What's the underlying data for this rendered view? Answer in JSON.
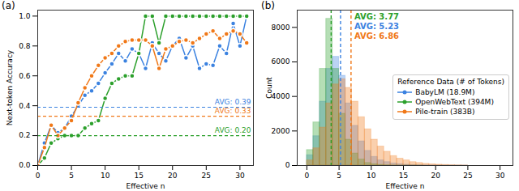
{
  "chart_data": [
    {
      "type": "line",
      "title": "(a)",
      "x_label": "Effective n",
      "y_label": "Next-token Accuracy",
      "x": [
        0,
        1,
        2,
        3,
        4,
        5,
        6,
        7,
        8,
        9,
        10,
        11,
        12,
        13,
        14,
        15,
        16,
        17,
        18,
        19,
        20,
        21,
        22,
        23,
        24,
        25,
        26,
        27,
        28,
        29,
        30,
        31
      ],
      "series": [
        {
          "name": "BabyLM (18.9M)",
          "color": "#3b82e0",
          "avg": 0.39,
          "avg_label": "AVG: 0.39",
          "values": [
            0,
            0.15,
            0.27,
            0.22,
            0.25,
            0.33,
            0.4,
            0.47,
            0.5,
            0.55,
            0.62,
            0.68,
            0.75,
            0.7,
            0.78,
            0.75,
            0.65,
            0.82,
            0.75,
            0.7,
            0.8,
            0.85,
            0.72,
            0.8,
            0.65,
            0.68,
            0.67,
            0.8,
            0.75,
            0.95,
            0.8,
            1.0
          ]
        },
        {
          "name": "OpenWebText (394M)",
          "color": "#2ca02c",
          "avg": 0.2,
          "avg_label": "AVG: 0.20",
          "values": [
            0,
            0.05,
            0.15,
            0.18,
            0.2,
            0.2,
            0.2,
            0.25,
            0.28,
            0.3,
            0.45,
            0.55,
            0.58,
            0.6,
            0.6,
            0.75,
            1.0,
            1.0,
            0.82,
            1.0,
            1.0,
            1.0,
            1.0,
            1.0,
            1.0,
            1.0,
            1.0,
            1.0,
            1.0,
            1.0,
            1.0,
            1.0
          ]
        },
        {
          "name": "Pile-train (383B)",
          "color": "#f07818",
          "avg": 0.33,
          "avg_label": "AVG: 0.33",
          "values": [
            0,
            0.12,
            0.27,
            0.2,
            0.25,
            0.3,
            0.42,
            0.52,
            0.6,
            0.67,
            0.72,
            0.75,
            0.8,
            0.83,
            0.84,
            0.84,
            0.84,
            0.8,
            0.65,
            0.78,
            0.8,
            0.83,
            0.84,
            0.82,
            0.85,
            0.88,
            0.9,
            0.85,
            0.88,
            0.9,
            0.88,
            0.82
          ]
        }
      ],
      "marker": "circle",
      "xlim": [
        0,
        32
      ],
      "xticks": [
        0,
        5,
        10,
        15,
        20,
        25,
        30
      ],
      "ylim": [
        0,
        1.04
      ],
      "yticks": [
        {
          "value": 0,
          "label": "0.0"
        },
        0.2,
        0.4,
        0.6,
        0.8,
        {
          "value": 1,
          "label": "1.0"
        }
      ],
      "grid": false
    },
    {
      "type": "histogram",
      "title": "(b)",
      "x_label": "Effective n",
      "y_label": "Count",
      "bins": [
        0,
        1,
        2,
        3,
        4,
        5,
        6,
        7,
        8,
        9,
        10,
        11,
        12,
        13,
        14,
        15,
        16,
        17,
        18,
        19,
        20,
        21,
        22,
        23,
        24,
        25
      ],
      "series": [
        {
          "name": "BabyLM (18.9M)",
          "color": "#3b82e0",
          "avg": 5.23,
          "avg_label": "AVG: 5.23",
          "values": [
            600,
            1700,
            3700,
            5600,
            6300,
            5200,
            3600,
            2300,
            1400,
            850,
            500,
            300,
            200,
            120,
            80,
            50,
            30,
            20,
            15,
            10,
            8,
            5,
            3,
            2,
            1
          ]
        },
        {
          "name": "OpenWebText (394M)",
          "color": "#2ca02c",
          "avg": 3.77,
          "avg_label": "AVG: 3.77",
          "values": [
            900,
            2500,
            5600,
            8500,
            5600,
            3000,
            1500,
            700,
            350,
            150,
            80,
            40,
            20,
            10,
            5,
            3,
            2,
            1,
            0,
            0,
            0,
            0,
            0,
            0,
            0
          ]
        },
        {
          "name": "Pile-train (383B)",
          "color": "#f07818",
          "avg": 6.86,
          "avg_label": "AVG: 6.86",
          "values": [
            300,
            1000,
            2200,
            3600,
            4700,
            5000,
            4500,
            3700,
            2800,
            2100,
            1500,
            1100,
            800,
            550,
            400,
            300,
            200,
            150,
            100,
            70,
            50,
            35,
            25,
            15,
            10
          ]
        }
      ],
      "legend": "center right",
      "legend_title": "Reference Data (# of Tokens)",
      "marker": "circle",
      "xlim": [
        -1.5,
        32
      ],
      "xticks": [
        0,
        5,
        10,
        15,
        20,
        25,
        30
      ],
      "ylim": [
        0,
        9000
      ],
      "yticks": [
        0,
        2000,
        4000,
        6000,
        8000
      ],
      "grid": false
    }
  ]
}
